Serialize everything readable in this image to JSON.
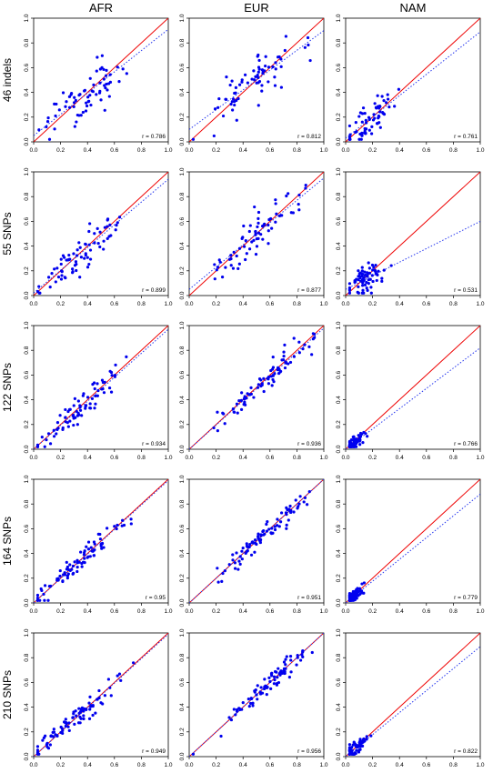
{
  "columns": [
    "AFR",
    "EUR",
    "NAM"
  ],
  "rows": [
    "46 indels",
    "55 SNPs",
    "122 SNPs",
    "164 SNPs",
    "210 SNPs"
  ],
  "colors": {
    "points": "#0000ee",
    "identity_line": "#ee0000",
    "fit_line": "#2233ee",
    "axes": "#000000"
  },
  "chart_data": {
    "type": "scatter",
    "layout": "grid 5 rows x 3 columns",
    "xlim": [
      0,
      1
    ],
    "ylim": [
      0,
      1
    ],
    "ticks": [
      "0.0",
      "0.2",
      "0.4",
      "0.6",
      "0.8",
      "1.0"
    ],
    "reference_line": "y = x (solid red)",
    "fit_line_style": "dotted blue",
    "panels": [
      {
        "row": "46 indels",
        "col": "AFR",
        "r": "r = 0.786",
        "fit": [
          0.05,
          0.86
        ],
        "cx": 0.38,
        "cy": 0.37,
        "spread": 0.15,
        "noise": 0.1,
        "n": 70
      },
      {
        "row": "46 indels",
        "col": "EUR",
        "r": "r = 0.812",
        "fit": [
          0.1,
          0.8
        ],
        "cx": 0.45,
        "cy": 0.46,
        "spread": 0.18,
        "noise": 0.09,
        "n": 70
      },
      {
        "row": "46 indels",
        "col": "NAM",
        "r": "r = 0.761",
        "fit": [
          0.03,
          0.86
        ],
        "cx": 0.18,
        "cy": 0.18,
        "spread": 0.08,
        "noise": 0.07,
        "n": 65
      },
      {
        "row": "55 SNPs",
        "col": "AFR",
        "r": "r = 0.899",
        "fit": [
          0.02,
          0.92
        ],
        "cx": 0.36,
        "cy": 0.36,
        "spread": 0.17,
        "noise": 0.07,
        "n": 75
      },
      {
        "row": "55 SNPs",
        "col": "EUR",
        "r": "r = 0.877",
        "fit": [
          0.05,
          0.9
        ],
        "cx": 0.5,
        "cy": 0.5,
        "spread": 0.17,
        "noise": 0.08,
        "n": 70
      },
      {
        "row": "55 SNPs",
        "col": "NAM",
        "r": "r = 0.531",
        "fit": [
          0.05,
          0.55
        ],
        "cx": 0.14,
        "cy": 0.12,
        "spread": 0.07,
        "noise": 0.06,
        "n": 70
      },
      {
        "row": "122 SNPs",
        "col": "AFR",
        "r": "r = 0.934",
        "fit": [
          0.0,
          0.97
        ],
        "cx": 0.35,
        "cy": 0.34,
        "spread": 0.17,
        "noise": 0.05,
        "n": 80
      },
      {
        "row": "122 SNPs",
        "col": "EUR",
        "r": "r = 0.936",
        "fit": [
          0.0,
          0.98
        ],
        "cx": 0.55,
        "cy": 0.55,
        "spread": 0.18,
        "noise": 0.05,
        "n": 80
      },
      {
        "row": "122 SNPs",
        "col": "NAM",
        "r": "r = 0.766",
        "fit": [
          0.0,
          0.82
        ],
        "cx": 0.06,
        "cy": 0.06,
        "spread": 0.04,
        "noise": 0.03,
        "n": 70
      },
      {
        "row": "164 SNPs",
        "col": "AFR",
        "r": "r = 0.95",
        "fit": [
          0.0,
          0.99
        ],
        "cx": 0.34,
        "cy": 0.34,
        "spread": 0.17,
        "noise": 0.04,
        "n": 85
      },
      {
        "row": "164 SNPs",
        "col": "EUR",
        "r": "r = 0.951",
        "fit": [
          0.0,
          1.0
        ],
        "cx": 0.58,
        "cy": 0.58,
        "spread": 0.18,
        "noise": 0.04,
        "n": 85
      },
      {
        "row": "164 SNPs",
        "col": "NAM",
        "r": "r = 0.779",
        "fit": [
          0.0,
          0.88
        ],
        "cx": 0.05,
        "cy": 0.05,
        "spread": 0.04,
        "noise": 0.025,
        "n": 75
      },
      {
        "row": "210 SNPs",
        "col": "AFR",
        "r": "r = 0.949",
        "fit": [
          0.0,
          0.99
        ],
        "cx": 0.33,
        "cy": 0.33,
        "spread": 0.17,
        "noise": 0.04,
        "n": 85
      },
      {
        "row": "210 SNPs",
        "col": "EUR",
        "r": "r = 0.956",
        "fit": [
          0.0,
          1.0
        ],
        "cx": 0.58,
        "cy": 0.58,
        "spread": 0.18,
        "noise": 0.04,
        "n": 85
      },
      {
        "row": "210 SNPs",
        "col": "NAM",
        "r": "r = 0.822",
        "fit": [
          0.0,
          0.89
        ],
        "cx": 0.06,
        "cy": 0.06,
        "spread": 0.05,
        "noise": 0.03,
        "n": 75
      }
    ]
  }
}
